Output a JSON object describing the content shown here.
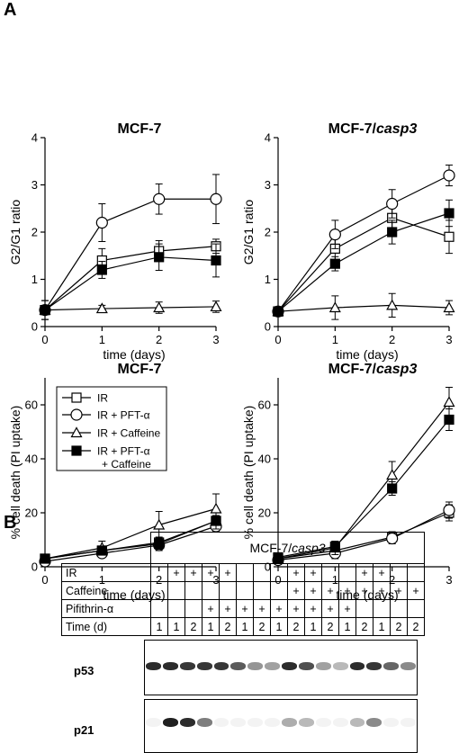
{
  "panel_labels": {
    "a": "A",
    "b": "B"
  },
  "chart_data": [
    {
      "type": "line",
      "title": "MCF-7",
      "xlabel": "time (days)",
      "ylabel": "G2/G1 ratio",
      "x": [
        0,
        1,
        2,
        3
      ],
      "xlim": [
        0,
        3
      ],
      "ylim": [
        0,
        4
      ],
      "yticks": [
        0,
        1,
        2,
        3,
        4
      ],
      "series": [
        {
          "name": "IR",
          "marker": "open-square",
          "values": [
            0.35,
            1.4,
            1.6,
            1.7
          ],
          "err": [
            0.2,
            0.25,
            0.22,
            0.15
          ]
        },
        {
          "name": "IR + PFT-α",
          "marker": "open-circle",
          "values": [
            0.35,
            2.2,
            2.7,
            2.7
          ],
          "err": [
            0.2,
            0.4,
            0.32,
            0.52
          ]
        },
        {
          "name": "IR + Caffeine",
          "marker": "open-triangle",
          "values": [
            0.35,
            0.38,
            0.4,
            0.42
          ],
          "err": [
            0.1,
            0.07,
            0.12,
            0.12
          ]
        },
        {
          "name": "IR + PFT-α + Caffeine",
          "marker": "filled-square",
          "values": [
            0.35,
            1.2,
            1.47,
            1.4
          ],
          "err": [
            0.2,
            0.18,
            0.28,
            0.35
          ]
        }
      ]
    },
    {
      "type": "line",
      "title_plain": "MCF-7/",
      "title_italic": "casp3",
      "xlabel": "time (days)",
      "ylabel": "G2/G1 ratio",
      "x": [
        0,
        1,
        2,
        3
      ],
      "xlim": [
        0,
        3
      ],
      "ylim": [
        0,
        4
      ],
      "yticks": [
        0,
        1,
        2,
        3,
        4
      ],
      "series": [
        {
          "name": "IR",
          "marker": "open-square",
          "values": [
            0.32,
            1.65,
            2.3,
            1.9
          ],
          "err": [
            0.1,
            0.3,
            0.3,
            0.35
          ]
        },
        {
          "name": "IR + PFT-α",
          "marker": "open-circle",
          "values": [
            0.32,
            1.95,
            2.6,
            3.2
          ],
          "err": [
            0.1,
            0.3,
            0.3,
            0.22
          ]
        },
        {
          "name": "IR + Caffeine",
          "marker": "open-triangle",
          "values": [
            0.32,
            0.4,
            0.45,
            0.4
          ],
          "err": [
            0.1,
            0.25,
            0.25,
            0.15
          ]
        },
        {
          "name": "IR + PFT-α + Caffeine",
          "marker": "filled-square",
          "values": [
            0.32,
            1.33,
            2.0,
            2.4
          ],
          "err": [
            0.1,
            0.15,
            0.25,
            0.28
          ]
        }
      ]
    },
    {
      "type": "line",
      "title": "MCF-7",
      "xlabel": "time (days)",
      "ylabel": "% cell death (PI uptake)",
      "x": [
        0,
        1,
        2,
        3
      ],
      "xlim": [
        0,
        3
      ],
      "ylim": [
        0,
        70
      ],
      "yticks": [
        0,
        20,
        40,
        60
      ],
      "legend": "top-left",
      "series": [
        {
          "name": "IR",
          "legend_label": "IR",
          "marker": "open-square",
          "values": [
            3,
            6,
            9,
            17
          ],
          "err": [
            1,
            1.5,
            2,
            2
          ]
        },
        {
          "name": "IR + PFT-α",
          "legend_label": "IR + PFT-α",
          "marker": "open-circle",
          "values": [
            2,
            5,
            8,
            15
          ],
          "err": [
            1,
            1.5,
            2,
            2
          ]
        },
        {
          "name": "IR + Caffeine",
          "legend_label": "IR + Caffeine",
          "marker": "open-triangle",
          "values": [
            3,
            7,
            15.5,
            21.5
          ],
          "err": [
            1,
            2.5,
            5,
            5.5
          ]
        },
        {
          "name": "IR + PFT-α + Caffeine",
          "legend_label": "IR + PFT-α",
          "legend_label2": "+ Caffeine",
          "marker": "filled-square",
          "values": [
            3,
            6,
            8.5,
            17
          ],
          "err": [
            1,
            1.5,
            2,
            3
          ]
        }
      ]
    },
    {
      "type": "line",
      "title_plain": "MCF-7/",
      "title_italic": "casp3",
      "xlabel": "time (days)",
      "ylabel": "% cell death (PI uptake)",
      "x": [
        0,
        1,
        2,
        3
      ],
      "xlim": [
        0,
        3
      ],
      "ylim": [
        0,
        70
      ],
      "yticks": [
        0,
        20,
        40,
        60
      ],
      "series": [
        {
          "name": "IR",
          "marker": "open-square",
          "values": [
            3,
            6,
            11,
            20
          ],
          "err": [
            1,
            2,
            2,
            3
          ]
        },
        {
          "name": "IR + PFT-α",
          "marker": "open-circle",
          "values": [
            2.5,
            5,
            10.5,
            21
          ],
          "err": [
            1,
            2,
            2,
            3
          ]
        },
        {
          "name": "IR + Caffeine",
          "marker": "open-triangle",
          "values": [
            3,
            7,
            34,
            61
          ],
          "err": [
            1,
            2.5,
            5,
            5.5
          ]
        },
        {
          "name": "IR + PFT-α + Caffeine",
          "marker": "filled-square",
          "values": [
            3.5,
            7.5,
            29,
            54.5
          ],
          "err": [
            1,
            2,
            2.5,
            4
          ]
        }
      ]
    }
  ],
  "blot": {
    "header_plain": "MCF-7/",
    "header_italic": "casp3",
    "rows": [
      {
        "label": "IR",
        "cells": [
          "",
          "+",
          "+",
          "+",
          "+",
          "",
          "",
          "",
          "+",
          "+",
          "",
          "",
          "+",
          "+",
          "",
          ""
        ]
      },
      {
        "label": "Caffeine",
        "cells": [
          "",
          "",
          "",
          "",
          "",
          "",
          "",
          "",
          "+",
          "+",
          "+",
          "+",
          "+",
          "+",
          "+",
          "+"
        ]
      },
      {
        "label": "Pifithrin-α",
        "cells": [
          "",
          "",
          "",
          "+",
          "+",
          "+",
          "+",
          "+",
          "+",
          "+",
          "+",
          "+",
          "",
          "",
          "",
          ""
        ]
      },
      {
        "label": "Time (d)",
        "cells": [
          "1",
          "1",
          "2",
          "1",
          "2",
          "1",
          "2",
          "1",
          "2",
          "1",
          "2",
          "1",
          "2",
          "1",
          "2",
          "2"
        ]
      }
    ],
    "p53_label": "p53",
    "p21_label": "p21",
    "p53_intensity": [
      0.9,
      0.9,
      0.85,
      0.85,
      0.85,
      0.7,
      0.45,
      0.4,
      0.9,
      0.75,
      0.4,
      0.3,
      0.9,
      0.85,
      0.65,
      0.5
    ],
    "p21_intensity": [
      0.05,
      0.95,
      0.9,
      0.55,
      0.05,
      0.05,
      0.05,
      0.05,
      0.35,
      0.3,
      0.05,
      0.05,
      0.3,
      0.5,
      0.05,
      0.05
    ]
  }
}
